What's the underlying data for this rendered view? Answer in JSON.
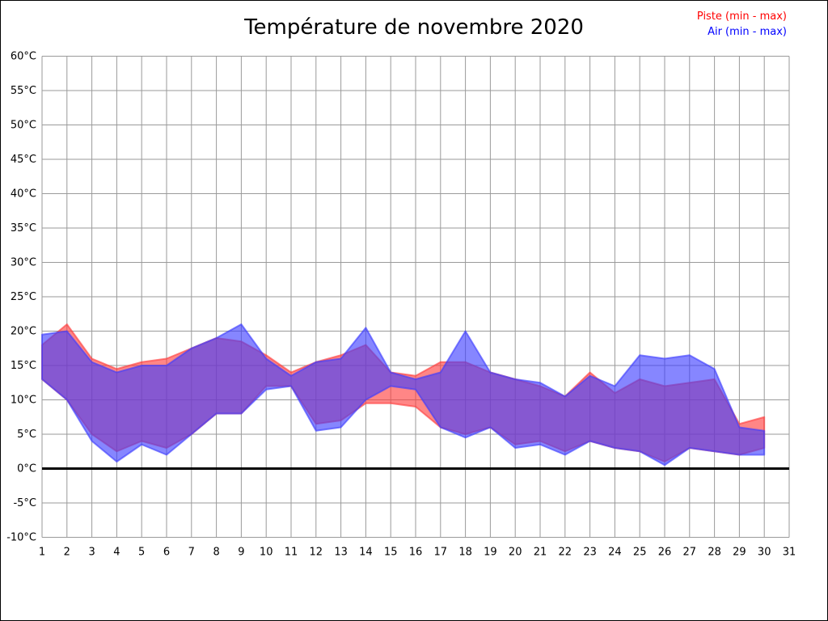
{
  "title": "Température de novembre 2020",
  "legend": {
    "piste": "Piste (min - max)",
    "air": "Air (min - max)"
  },
  "colors": {
    "piste_text": "#ff0000",
    "air_text": "#0000ff",
    "piste_fill": "rgba(255,60,60,0.62)",
    "air_fill": "rgba(60,60,255,0.62)",
    "grid": "#9a9a9a",
    "zero_line": "#000000",
    "tick_text": "#000000"
  },
  "chart_data": {
    "type": "area",
    "title": "Température de novembre 2020",
    "xlabel": "",
    "ylabel": "",
    "ylim": [
      -10,
      60
    ],
    "ytick_step": 5,
    "grid": true,
    "legend_position": "top-right",
    "x_days": [
      1,
      2,
      3,
      4,
      5,
      6,
      7,
      8,
      9,
      10,
      11,
      12,
      13,
      14,
      15,
      16,
      17,
      18,
      19,
      20,
      21,
      22,
      23,
      24,
      25,
      26,
      27,
      28,
      29,
      30
    ],
    "xticks": [
      "1",
      "2",
      "3",
      "4",
      "5",
      "6",
      "7",
      "8",
      "9",
      "10",
      "11",
      "12",
      "13",
      "14",
      "15",
      "16",
      "17",
      "18",
      "19",
      "20",
      "21",
      "22",
      "23",
      "24",
      "25",
      "26",
      "27",
      "28",
      "29",
      "30",
      "31"
    ],
    "yticks": [
      "60°C",
      "55°C",
      "50°C",
      "45°C",
      "40°C",
      "35°C",
      "30°C",
      "25°C",
      "20°C",
      "15°C",
      "10°C",
      "5°C",
      "0°C",
      "-5°C",
      "-10°C"
    ],
    "series": [
      {
        "name": "Piste (min - max)",
        "max": [
          18,
          21,
          16,
          14.5,
          15.5,
          16,
          17.5,
          19,
          18.5,
          16.5,
          14,
          15.5,
          16.5,
          18,
          14,
          13.5,
          15.5,
          15.5,
          14,
          13,
          12,
          10.5,
          14,
          11,
          13,
          12,
          12.5,
          13,
          6.5,
          7.5
        ],
        "min": [
          13,
          10,
          5,
          2.5,
          4,
          3,
          5,
          8,
          8,
          12,
          12,
          6.5,
          7,
          9.5,
          9.5,
          9,
          6,
          5,
          6,
          3.5,
          4,
          2.5,
          4,
          3,
          2.5,
          1,
          3,
          2.5,
          2,
          3
        ]
      },
      {
        "name": "Air (min - max)",
        "max": [
          19.5,
          20,
          15.5,
          14,
          15,
          15,
          17.5,
          19,
          21,
          16,
          13.5,
          15.5,
          16,
          20.5,
          14,
          13,
          14,
          20,
          14,
          13,
          12.5,
          10.5,
          13.5,
          12,
          16.5,
          16,
          16.5,
          14.5,
          6,
          5.5
        ],
        "min": [
          13,
          10,
          4,
          1,
          3.5,
          2,
          5,
          8,
          8,
          11.5,
          12,
          5.5,
          6,
          10,
          12,
          11.5,
          6,
          4.5,
          6,
          3,
          3.5,
          2,
          4,
          3,
          2.5,
          0.5,
          3,
          2.5,
          2,
          2
        ]
      }
    ]
  }
}
